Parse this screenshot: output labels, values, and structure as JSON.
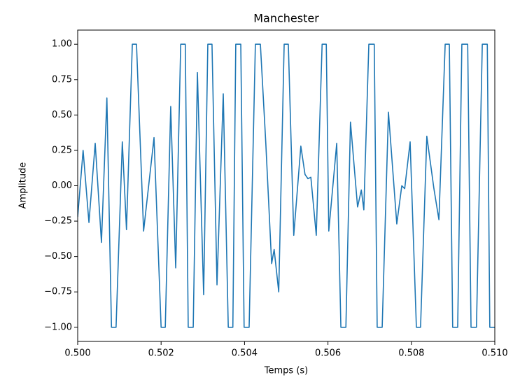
{
  "chart_data": {
    "type": "line",
    "title": "Manchester",
    "xlabel": "Temps (s)",
    "ylabel": "Amplitude",
    "x": [
      0.5,
      0.50013,
      0.50027,
      0.50042,
      0.50057,
      0.5007,
      0.50081,
      0.50092,
      0.50107,
      0.50117,
      0.50131,
      0.50141,
      0.50158,
      0.50183,
      0.502,
      0.5021,
      0.50223,
      0.50235,
      0.50247,
      0.50258,
      0.50265,
      0.50277,
      0.50287,
      0.50302,
      0.50312,
      0.50322,
      0.50334,
      0.50349,
      0.50361,
      0.50372,
      0.50379,
      0.50391,
      0.50399,
      0.50411,
      0.50426,
      0.50438,
      0.50451,
      0.50465,
      0.50471,
      0.50482,
      0.50495,
      0.50505,
      0.50518,
      0.50535,
      0.50545,
      0.50552,
      0.50559,
      0.50572,
      0.50586,
      0.50596,
      0.50602,
      0.50621,
      0.50631,
      0.50643,
      0.50654,
      0.50671,
      0.5068,
      0.50686,
      0.50698,
      0.50711,
      0.50718,
      0.5073,
      0.50745,
      0.50765,
      0.50777,
      0.50784,
      0.50797,
      0.50812,
      0.50822,
      0.50837,
      0.50854,
      0.50866,
      0.50881,
      0.50891,
      0.50899,
      0.50911,
      0.50921,
      0.50935,
      0.50943,
      0.50956,
      0.5097,
      0.50982,
      0.50988,
      0.51
    ],
    "series": [
      {
        "color": "#1f77b4",
        "values": [
          -0.22,
          0.25,
          -0.26,
          0.3,
          -0.4,
          0.62,
          -1,
          -1,
          0.31,
          -0.31,
          1,
          1,
          -0.32,
          0.34,
          -1,
          -1,
          0.56,
          -0.58,
          1,
          1,
          -1,
          -1,
          0.8,
          -0.77,
          1,
          1,
          -0.7,
          0.65,
          -1,
          -1,
          1,
          1,
          -1,
          -1,
          1,
          1,
          0.3,
          -0.55,
          -0.45,
          -0.75,
          1,
          1,
          -0.35,
          0.28,
          0.08,
          0.05,
          0.06,
          -0.35,
          1,
          1,
          -0.32,
          0.3,
          -1,
          -1,
          0.45,
          -0.15,
          -0.03,
          -0.17,
          1,
          1,
          -1,
          -1,
          0.52,
          -0.27,
          0,
          -0.02,
          0.31,
          -1,
          -1,
          0.35,
          -0.02,
          -0.24,
          1,
          1,
          -1,
          -1,
          1,
          1,
          -1,
          -1,
          1,
          1,
          -1,
          -1
        ]
      }
    ],
    "xlim": [
      0.5,
      0.51
    ],
    "xticks": [
      {
        "value": 0.5,
        "label": "0.500"
      },
      {
        "value": 0.502,
        "label": "0.502"
      },
      {
        "value": 0.504,
        "label": "0.504"
      },
      {
        "value": 0.506,
        "label": "0.506"
      },
      {
        "value": 0.508,
        "label": "0.508"
      },
      {
        "value": 0.51,
        "label": "0.510"
      }
    ],
    "ylim": [
      -1.1,
      1.1
    ],
    "yticks": [
      {
        "value": -1,
        "label": "−1.00"
      },
      {
        "value": -0.75,
        "label": "−0.75"
      },
      {
        "value": -0.5,
        "label": "−0.50"
      },
      {
        "value": -0.25,
        "label": "−0.25"
      },
      {
        "value": 0,
        "label": "0.00"
      },
      {
        "value": 0.25,
        "label": "0.25"
      },
      {
        "value": 0.5,
        "label": "0.50"
      },
      {
        "value": 0.75,
        "label": "0.75"
      },
      {
        "value": 1,
        "label": "1.00"
      }
    ]
  }
}
